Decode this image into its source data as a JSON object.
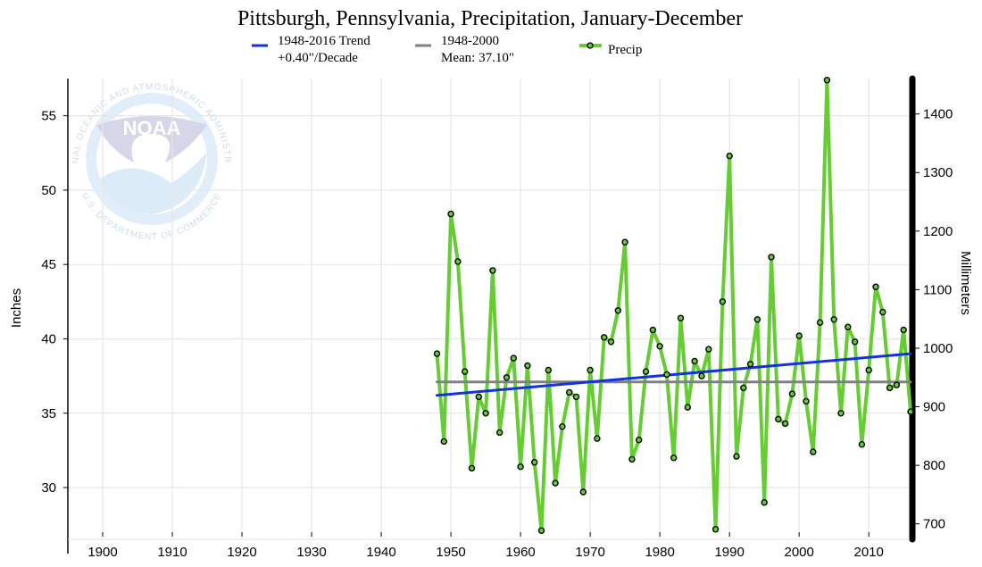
{
  "chart_data": {
    "type": "line",
    "title": "Pittsburgh, Pennsylvania, Precipitation, January-December",
    "xlabel": "",
    "ylabel": "Inches",
    "ylabel_right": "Millimeters",
    "xlim": [
      1895,
      2016
    ],
    "ylim": [
      27,
      57.5
    ],
    "x_ticks": [
      1900,
      1910,
      1920,
      1930,
      1940,
      1950,
      1960,
      1970,
      1980,
      1990,
      2000,
      2010
    ],
    "y_ticks": [
      30,
      35,
      40,
      45,
      50,
      55
    ],
    "y_ticks_right": [
      700,
      800,
      900,
      1000,
      1100,
      1200,
      1300,
      1400
    ],
    "grid": true,
    "legend_position": "top",
    "legend": [
      {
        "line1": "1948-2016 Trend",
        "line2": "+0.40\"/Decade",
        "color": "#1133dd"
      },
      {
        "line1": "1948-2000",
        "line2": "Mean: 37.10\"",
        "color": "#808080"
      },
      {
        "line1": "Precip",
        "line2": "",
        "color": "#66cc33"
      }
    ],
    "series": [
      {
        "name": "Precip",
        "color": "#66cc33",
        "x": [
          1948,
          1949,
          1950,
          1951,
          1952,
          1953,
          1954,
          1955,
          1956,
          1957,
          1958,
          1959,
          1960,
          1961,
          1962,
          1963,
          1964,
          1965,
          1966,
          1967,
          1968,
          1969,
          1970,
          1971,
          1972,
          1973,
          1974,
          1975,
          1976,
          1977,
          1978,
          1979,
          1980,
          1981,
          1982,
          1983,
          1984,
          1985,
          1986,
          1987,
          1988,
          1989,
          1990,
          1991,
          1992,
          1993,
          1994,
          1995,
          1996,
          1997,
          1998,
          1999,
          2000,
          2001,
          2002,
          2003,
          2004,
          2005,
          2006,
          2007,
          2008,
          2009,
          2010,
          2011,
          2012,
          2013,
          2014,
          2015,
          2016
        ],
        "values": [
          39.0,
          33.1,
          48.4,
          45.2,
          37.8,
          31.3,
          36.1,
          35.0,
          44.6,
          33.7,
          37.4,
          38.7,
          31.4,
          38.2,
          31.7,
          27.1,
          37.9,
          30.3,
          34.1,
          36.4,
          36.1,
          29.7,
          37.9,
          33.3,
          40.1,
          39.8,
          41.9,
          46.5,
          31.9,
          33.2,
          37.8,
          40.6,
          39.5,
          37.6,
          32.0,
          41.4,
          35.4,
          38.5,
          37.5,
          39.3,
          27.2,
          42.5,
          52.3,
          32.1,
          36.7,
          38.3,
          41.3,
          29.0,
          45.5,
          34.6,
          34.3,
          36.3,
          40.2,
          35.8,
          32.4,
          41.1,
          57.4,
          41.3,
          35.0,
          40.8,
          39.8,
          32.9,
          37.9,
          43.5,
          41.8,
          36.7,
          36.9,
          40.6,
          35.1
        ]
      },
      {
        "name": "1948-2016 Trend",
        "color": "#1133dd",
        "x": [
          1948,
          2016
        ],
        "values": [
          36.2,
          39.0
        ]
      },
      {
        "name": "1948-2000",
        "color": "#808080",
        "x": [
          1948,
          2016
        ],
        "values": [
          37.1,
          37.1
        ]
      }
    ]
  },
  "logo": {
    "name": "NOAA",
    "ring_text_top": "NATIONAL OCEANIC AND ATMOSPHERIC ADMINISTRATION",
    "ring_text_bottom": "U.S. DEPARTMENT OF COMMERCE"
  }
}
